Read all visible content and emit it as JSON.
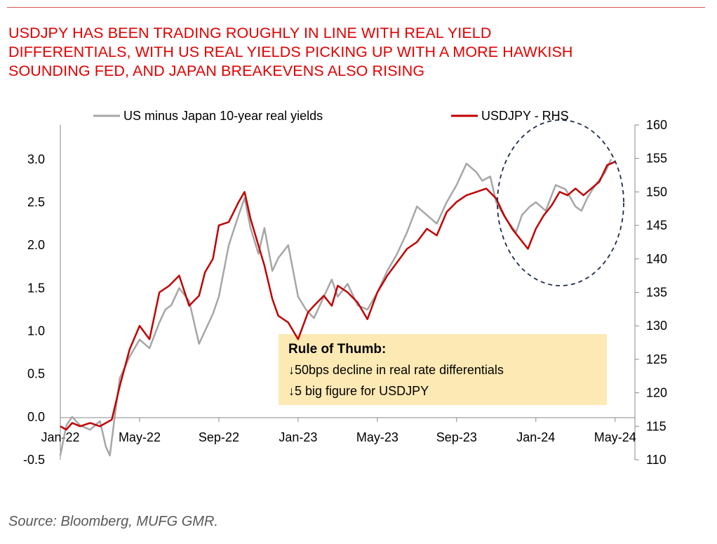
{
  "title_lines": [
    "USDJPY HAS BEEN TRADING ROUGHLY IN LINE WITH REAL YIELD",
    "DIFFERENTIALS, WITH US REAL YIELDS PICKING UP WITH A MORE HAWKISH",
    "SOUNDING FED, AND JAPAN BREAKEVENS ALSO RISING"
  ],
  "source": "Source: Bloomberg, MUFG GMR.",
  "colors": {
    "title": "#e00000",
    "series_real_yield": "#a6a6a6",
    "series_usdjpy": "#c00000",
    "annotation_bg": "#fde9b4",
    "circle": "#1f2d4a"
  },
  "annotation": {
    "heading": "Rule of Thumb:",
    "line1": "↓50bps decline in real rate differentials",
    "line2": "↓5 big figure for USDJPY"
  },
  "chart_data": {
    "type": "line",
    "x_ticks": [
      "Jan-22",
      "May-22",
      "Sep-22",
      "Jan-23",
      "May-23",
      "Sep-23",
      "Jan-24",
      "May-24"
    ],
    "x_tick_months": [
      0,
      4,
      8,
      12,
      16,
      20,
      24,
      28
    ],
    "xlim_months": [
      0,
      29
    ],
    "y_left": {
      "ticks": [
        "-0.5",
        "0.0",
        "0.5",
        "1.0",
        "1.5",
        "2.0",
        "2.5",
        "3.0"
      ],
      "lim": [
        -0.5,
        3.4
      ]
    },
    "y_right": {
      "ticks": [
        "110",
        "115",
        "120",
        "125",
        "130",
        "135",
        "140",
        "145",
        "150",
        "155",
        "160"
      ],
      "lim": [
        110,
        160
      ]
    },
    "legend": [
      "US minus Japan 10-year real yields",
      "USDJPY - RHS"
    ],
    "series": [
      {
        "name": "US minus Japan 10-year real yields",
        "axis": "left",
        "x_months": [
          0,
          0.3,
          0.6,
          1,
          1.5,
          2,
          2.3,
          2.5,
          2.8,
          3,
          3.5,
          4,
          4.5,
          5,
          5.3,
          5.6,
          6,
          6.5,
          7,
          7.3,
          7.7,
          8,
          8.5,
          9,
          9.3,
          9.6,
          10,
          10.3,
          10.7,
          11,
          11.5,
          12,
          12.4,
          12.8,
          13.3,
          13.7,
          14,
          14.5,
          15,
          15.5,
          16,
          16.5,
          17,
          17.5,
          18,
          18.5,
          19,
          19.5,
          20,
          20.5,
          21,
          21.3,
          21.7,
          22,
          22.5,
          23,
          23.3,
          23.7,
          24,
          24.5,
          25,
          25.5,
          26,
          26.3,
          26.6,
          27,
          27.5,
          27.8
        ],
        "values": [
          -0.45,
          -0.1,
          0.0,
          -0.1,
          -0.15,
          -0.05,
          -0.35,
          -0.45,
          0.1,
          0.45,
          0.7,
          0.9,
          0.8,
          1.1,
          1.25,
          1.3,
          1.5,
          1.35,
          0.85,
          1.0,
          1.2,
          1.4,
          2.0,
          2.35,
          2.55,
          2.2,
          1.9,
          2.2,
          1.7,
          1.85,
          2.0,
          1.4,
          1.25,
          1.15,
          1.4,
          1.6,
          1.4,
          1.55,
          1.3,
          1.25,
          1.45,
          1.7,
          1.9,
          2.15,
          2.45,
          2.35,
          2.25,
          2.5,
          2.7,
          2.95,
          2.85,
          2.75,
          2.8,
          2.5,
          2.3,
          2.15,
          2.35,
          2.45,
          2.5,
          2.4,
          2.7,
          2.65,
          2.45,
          2.4,
          2.55,
          2.7,
          2.85,
          3.0
        ]
      },
      {
        "name": "USDJPY - RHS",
        "axis": "right",
        "x_months": [
          0,
          0.3,
          0.6,
          1,
          1.5,
          2,
          2.3,
          2.6,
          3,
          3.5,
          4,
          4.5,
          5,
          5.5,
          6,
          6.5,
          7,
          7.3,
          7.7,
          8,
          8.5,
          9,
          9.3,
          9.6,
          10,
          10.3,
          10.7,
          11,
          11.5,
          12,
          12.5,
          12.8,
          13.3,
          13.7,
          14,
          14.5,
          15,
          15.5,
          16,
          16.5,
          17,
          17.5,
          18,
          18.5,
          19,
          19.5,
          20,
          20.5,
          21,
          21.5,
          22,
          22.4,
          22.8,
          23.2,
          23.6,
          24,
          24.4,
          24.8,
          25.2,
          25.6,
          26,
          26.4,
          26.8,
          27.2,
          27.6,
          28
        ],
        "values": [
          115,
          114.5,
          115.5,
          115,
          115.5,
          115,
          115.5,
          116,
          121,
          126.5,
          130,
          128,
          135,
          136,
          137.5,
          133,
          134.5,
          138,
          140,
          145,
          145.5,
          148.5,
          150,
          146,
          142,
          139,
          134,
          131.5,
          130.5,
          128,
          132,
          133,
          134.5,
          133,
          136,
          135,
          133.5,
          131,
          135,
          137.5,
          139.5,
          141.5,
          142.5,
          144.5,
          143.5,
          147,
          148.5,
          149.5,
          150,
          150.5,
          149,
          146.5,
          144.5,
          143,
          141.5,
          144.5,
          146.5,
          148,
          150,
          149.5,
          150.5,
          149.5,
          150.5,
          151.5,
          154,
          154.5
        ]
      }
    ]
  }
}
